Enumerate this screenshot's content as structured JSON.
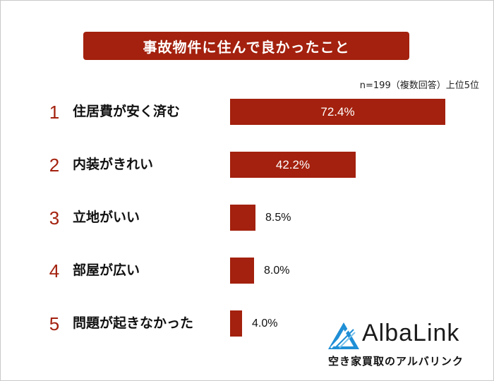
{
  "chart_data": {
    "type": "bar",
    "orientation": "horizontal",
    "title": "事故物件に住んで良かったこと",
    "note": "n=199（複数回答）上位5位",
    "categories": [
      "住居費が安く済む",
      "内装がきれい",
      "立地がいい",
      "部屋が広い",
      "問題が起きなかった"
    ],
    "ranks": [
      "1",
      "2",
      "3",
      "4",
      "5"
    ],
    "values": [
      72.4,
      42.2,
      8.5,
      8.0,
      4.0
    ],
    "value_labels": [
      "72.4%",
      "42.2%",
      "8.5%",
      "8.0%",
      "4.0%"
    ],
    "xlim": [
      0,
      72.4
    ],
    "grid": false,
    "bar_color": "#a3210e"
  },
  "logo": {
    "word": "AlbaLink",
    "tagline": "空き家買取のアルバリンク",
    "mark_color": "#1f8fd6"
  }
}
